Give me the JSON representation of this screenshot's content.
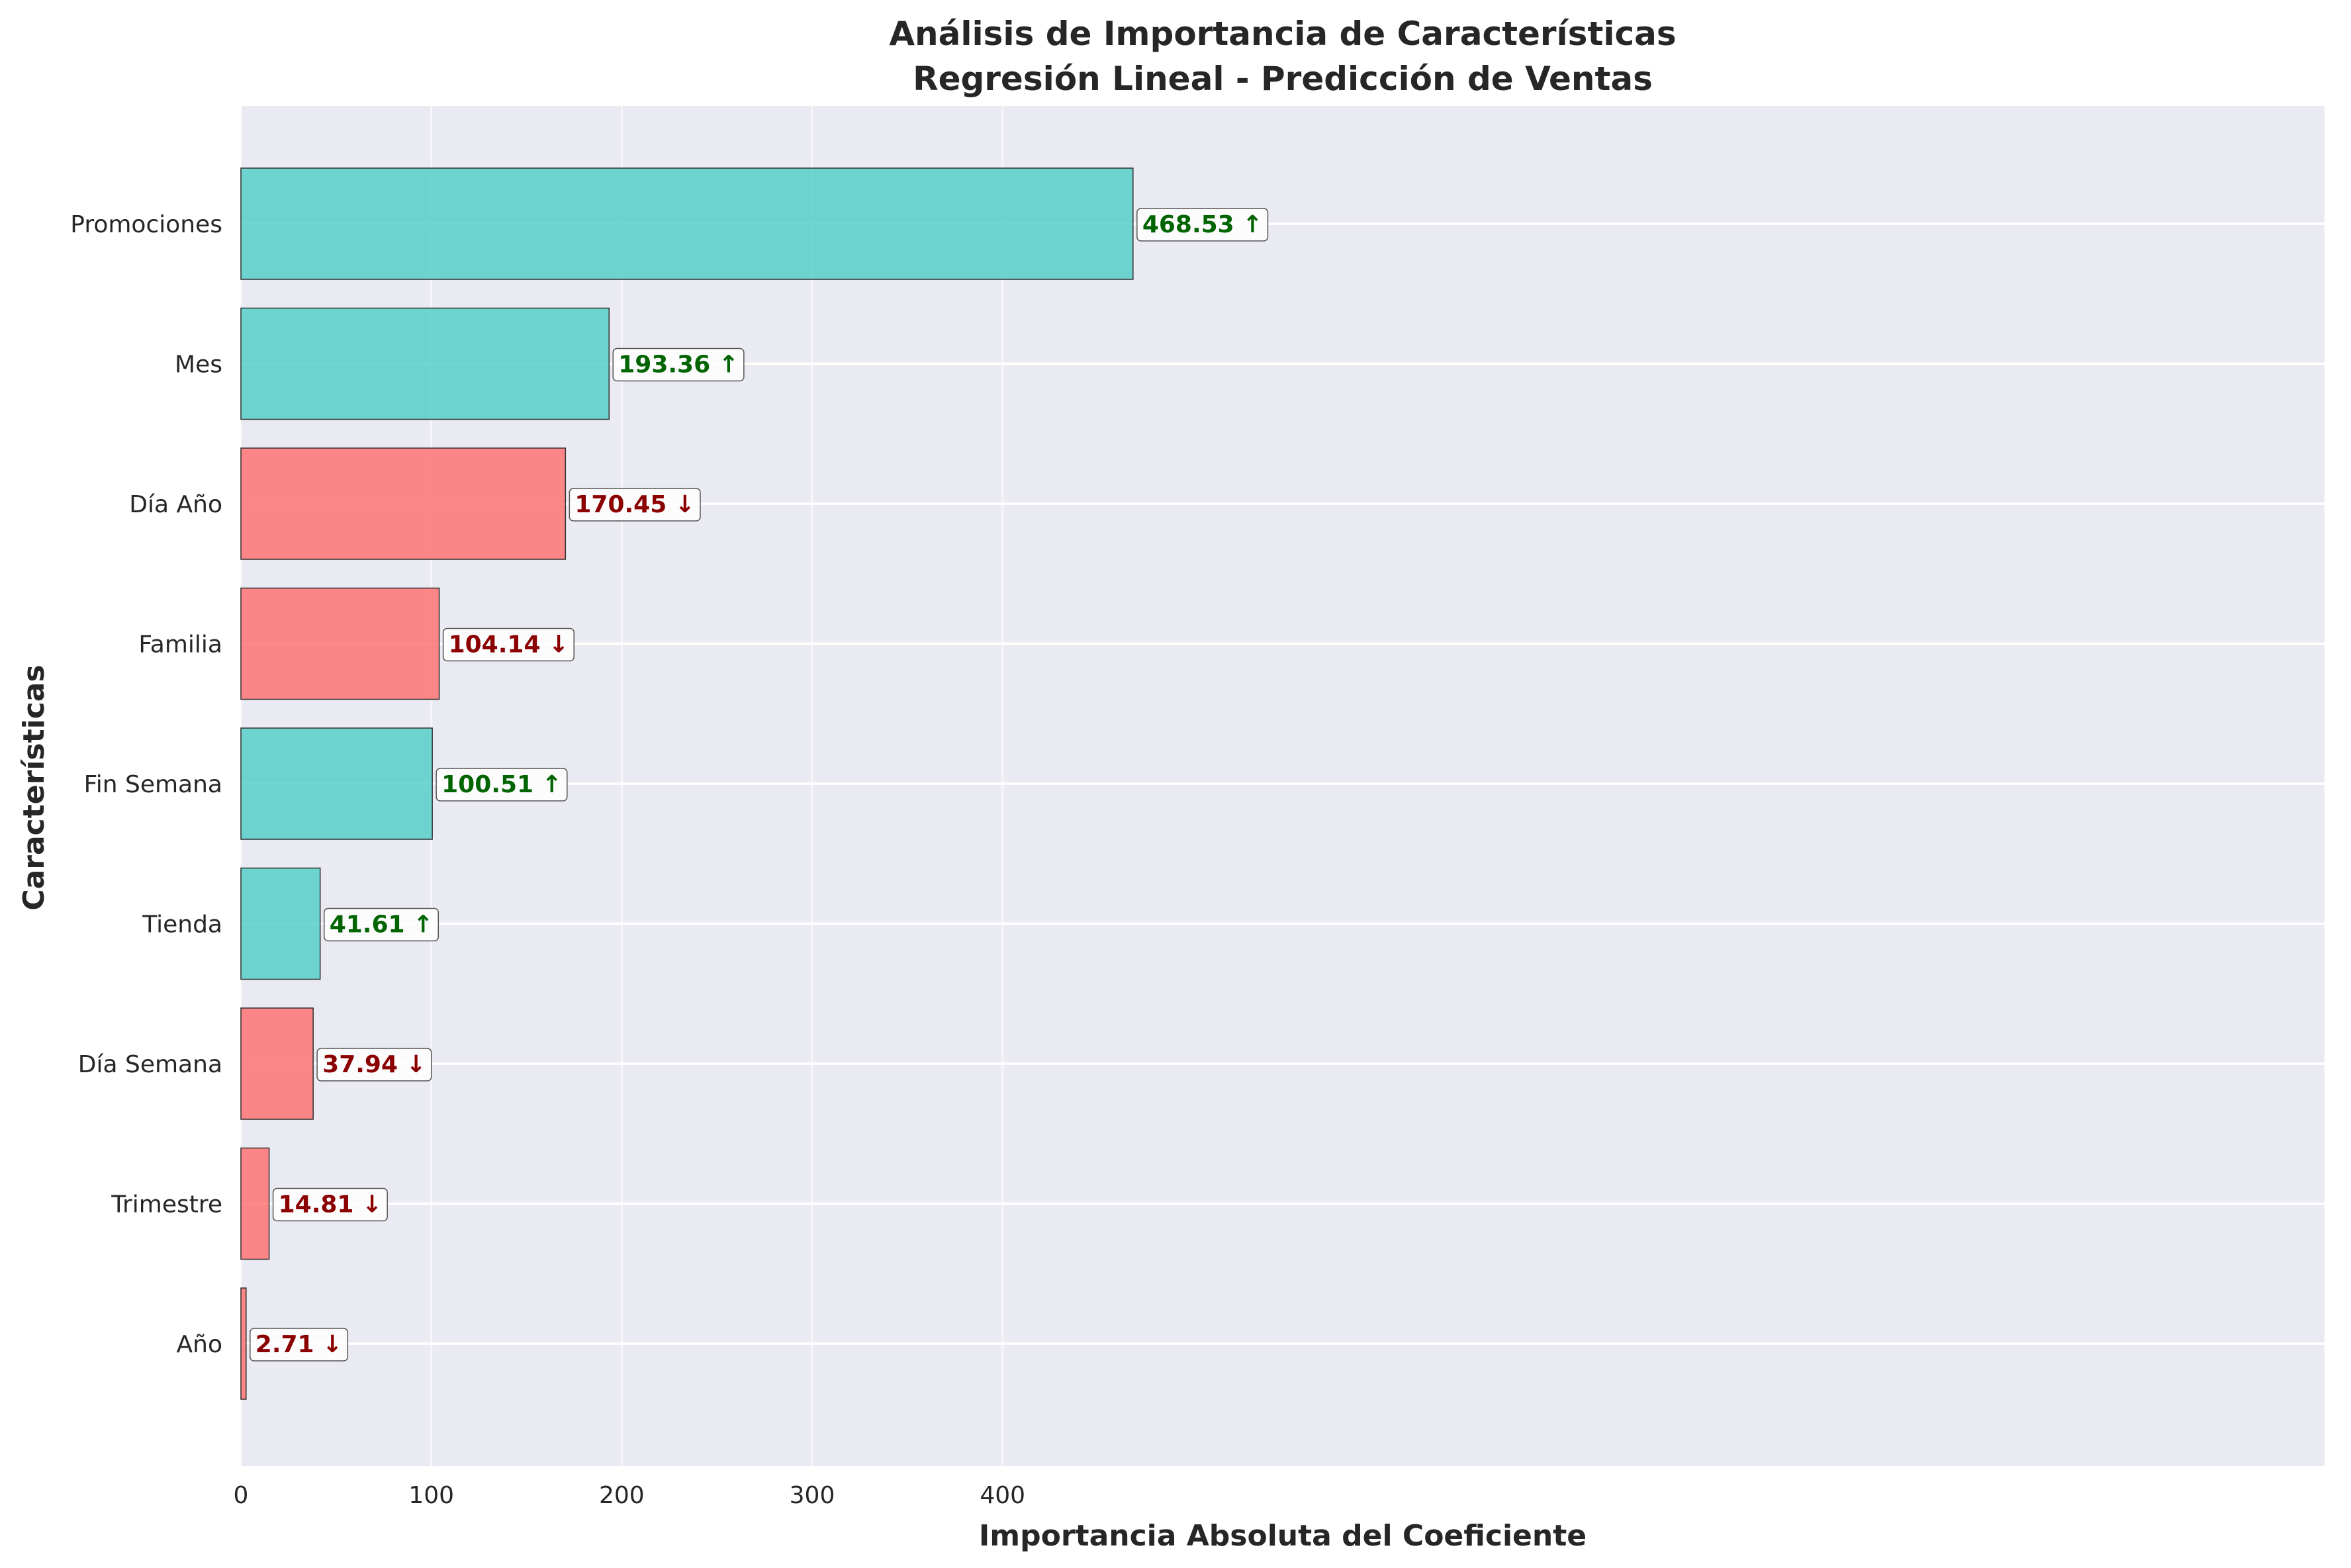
{
  "chart_data": {
    "type": "bar",
    "orientation": "horizontal",
    "title_line1": "Análisis de Importancia de Características",
    "title_line2": "Regresión Lineal - Predicción de Ventas",
    "xlabel": "Importancia Absoluta del Coeficiente",
    "ylabel": "Características",
    "xlim": [
      0,
      490
    ],
    "xticks": [
      0,
      100,
      200,
      300,
      400
    ],
    "grid": true,
    "categories": [
      "Promociones",
      "Mes",
      "Día Año",
      "Familia",
      "Fin Semana",
      "Tienda",
      "Día Semana",
      "Trimestre",
      "Año"
    ],
    "values": [
      468.53,
      193.36,
      170.45,
      104.14,
      100.51,
      41.61,
      37.94,
      14.81,
      2.71
    ],
    "direction": [
      "positive",
      "positive",
      "negative",
      "negative",
      "positive",
      "positive",
      "negative",
      "negative",
      "negative"
    ],
    "labels": [
      "468.53 ↑",
      "193.36 ↑",
      "170.45 ↓",
      "104.14 ↓",
      "100.51 ↑",
      "41.61 ↑",
      "37.94 ↓",
      "14.81 ↓",
      "2.71 ↓"
    ],
    "colors": {
      "positive_bar": "#4ecdc4",
      "negative_bar": "#ff6b6b",
      "positive_text": "#006400",
      "negative_text": "#8b0000",
      "plot_background": "#eaeaf2",
      "grid": "#ffffff"
    }
  }
}
